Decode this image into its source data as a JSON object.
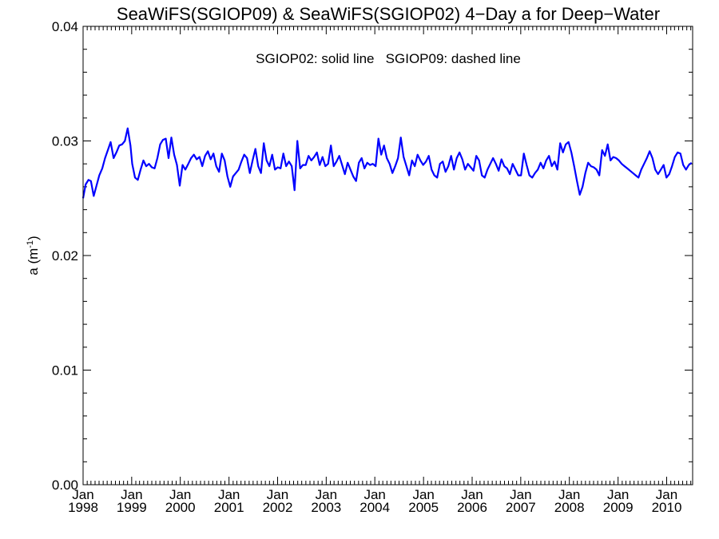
{
  "chart_data": {
    "type": "line",
    "title": "SeaWiFS(SGIOP09) & SeaWiFS(SGIOP02) 4−Day a for Deep−Water",
    "annotation": "SGIOP02: solid line   SGIOP09: dashed line",
    "ylabel": "a (m",
    "ylabel_sup": "-1",
    "ylabel_close": ")",
    "ylim": [
      0.0,
      0.04
    ],
    "yticks": [
      0.0,
      0.01,
      0.02,
      0.03,
      0.04
    ],
    "ytick_labels": [
      "0.00",
      "0.01",
      "0.02",
      "0.03",
      "0.04"
    ],
    "xlim": [
      "1998-01-01",
      "2010-07-15"
    ],
    "xticks": [
      {
        "month": "Jan",
        "year": "1998",
        "date": "1998-01-01"
      },
      {
        "month": "Jan",
        "year": "1999",
        "date": "1999-01-01"
      },
      {
        "month": "Jan",
        "year": "2000",
        "date": "2000-01-01"
      },
      {
        "month": "Jan",
        "year": "2001",
        "date": "2001-01-01"
      },
      {
        "month": "Jan",
        "year": "2002",
        "date": "2002-01-01"
      },
      {
        "month": "Jan",
        "year": "2003",
        "date": "2003-01-01"
      },
      {
        "month": "Jan",
        "year": "2004",
        "date": "2004-01-01"
      },
      {
        "month": "Jan",
        "year": "2005",
        "date": "2005-01-01"
      },
      {
        "month": "Jan",
        "year": "2006",
        "date": "2006-01-01"
      },
      {
        "month": "Jan",
        "year": "2007",
        "date": "2007-01-01"
      },
      {
        "month": "Jan",
        "year": "2008",
        "date": "2008-01-01"
      },
      {
        "month": "Jan",
        "year": "2009",
        "date": "2009-01-01"
      },
      {
        "month": "Jan",
        "year": "2010",
        "date": "2010-01-01"
      }
    ],
    "grid": false,
    "legend": "none",
    "series": [
      {
        "color": "#0000ff",
        "style": "solid",
        "x": [
          "1998-01-01",
          "1998-01-20",
          "1998-02-10",
          "1998-03-01",
          "1998-03-22",
          "1998-04-12",
          "1998-05-03",
          "1998-05-25",
          "1998-06-15",
          "1998-07-06",
          "1998-07-27",
          "1998-08-18",
          "1998-09-08",
          "1998-09-30",
          "1998-10-21",
          "1998-11-11",
          "1998-12-02",
          "1998-12-23",
          "1999-01-05",
          "1999-01-26",
          "1999-02-16",
          "1999-03-09",
          "1999-03-30",
          "1999-04-20",
          "1999-05-11",
          "1999-06-01",
          "1999-06-22",
          "1999-07-13",
          "1999-08-03",
          "1999-08-24",
          "1999-09-14",
          "1999-10-05",
          "1999-10-26",
          "1999-11-16",
          "1999-12-07",
          "1999-12-28",
          "2000-01-18",
          "2000-02-08",
          "2000-03-01",
          "2000-03-22",
          "2000-04-12",
          "2000-05-03",
          "2000-05-24",
          "2000-06-14",
          "2000-07-05",
          "2000-07-26",
          "2000-08-16",
          "2000-09-06",
          "2000-09-27",
          "2000-10-18",
          "2000-11-08",
          "2000-11-29",
          "2000-12-20",
          "2001-01-10",
          "2001-01-31",
          "2001-02-21",
          "2001-03-14",
          "2001-04-04",
          "2001-04-25",
          "2001-05-16",
          "2001-06-06",
          "2001-06-27",
          "2001-07-18",
          "2001-08-08",
          "2001-08-29",
          "2001-09-19",
          "2001-10-10",
          "2001-10-31",
          "2001-11-21",
          "2001-12-12",
          "2002-01-02",
          "2002-01-23",
          "2002-02-13",
          "2002-03-06",
          "2002-03-27",
          "2002-04-17",
          "2002-05-08",
          "2002-05-29",
          "2002-06-19",
          "2002-07-10",
          "2002-07-31",
          "2002-08-21",
          "2002-09-11",
          "2002-10-02",
          "2002-10-23",
          "2002-11-13",
          "2002-12-04",
          "2002-12-25",
          "2003-01-15",
          "2003-02-05",
          "2003-02-26",
          "2003-03-19",
          "2003-04-09",
          "2003-04-30",
          "2003-05-21",
          "2003-06-11",
          "2003-07-02",
          "2003-07-23",
          "2003-08-13",
          "2003-09-03",
          "2003-09-24",
          "2003-10-15",
          "2003-11-05",
          "2003-11-26",
          "2003-12-17",
          "2004-01-07",
          "2004-01-28",
          "2004-02-18",
          "2004-03-10",
          "2004-03-31",
          "2004-04-21",
          "2004-05-12",
          "2004-06-02",
          "2004-06-23",
          "2004-07-14",
          "2004-08-04",
          "2004-08-25",
          "2004-09-15",
          "2004-10-06",
          "2004-10-27",
          "2004-11-17",
          "2004-12-08",
          "2004-12-29",
          "2005-01-19",
          "2005-02-09",
          "2005-03-02",
          "2005-03-23",
          "2005-04-13",
          "2005-05-04",
          "2005-05-25",
          "2005-06-15",
          "2005-07-06",
          "2005-07-27",
          "2005-08-17",
          "2005-09-07",
          "2005-09-28",
          "2005-10-19",
          "2005-11-09",
          "2005-11-30",
          "2005-12-21",
          "2006-01-11",
          "2006-02-01",
          "2006-02-22",
          "2006-03-15",
          "2006-04-05",
          "2006-04-26",
          "2006-05-17",
          "2006-06-07",
          "2006-06-28",
          "2006-07-19",
          "2006-08-09",
          "2006-08-30",
          "2006-09-20",
          "2006-10-11",
          "2006-11-01",
          "2006-11-22",
          "2006-12-13",
          "2007-01-03",
          "2007-01-24",
          "2007-02-14",
          "2007-03-07",
          "2007-03-28",
          "2007-04-18",
          "2007-05-09",
          "2007-05-30",
          "2007-06-20",
          "2007-07-11",
          "2007-08-01",
          "2007-08-22",
          "2007-09-12",
          "2007-10-03",
          "2007-10-24",
          "2007-11-14",
          "2007-12-05",
          "2007-12-26",
          "2008-01-16",
          "2008-02-06",
          "2008-02-27",
          "2008-03-19",
          "2008-04-09",
          "2008-04-30",
          "2008-05-21",
          "2008-06-11",
          "2008-07-02",
          "2008-07-23",
          "2008-08-13",
          "2008-09-03",
          "2008-09-24",
          "2008-10-15",
          "2008-11-05",
          "2008-11-26",
          "2008-12-17",
          "2009-01-07",
          "2009-01-28",
          "2009-02-18",
          "2009-03-11",
          "2009-04-01",
          "2009-04-22",
          "2009-05-13",
          "2009-06-03",
          "2009-06-24",
          "2009-07-15",
          "2009-08-05",
          "2009-08-26",
          "2009-09-16",
          "2009-10-07",
          "2009-10-28",
          "2009-11-18",
          "2009-12-09",
          "2009-12-30",
          "2010-01-20",
          "2010-02-10",
          "2010-03-03",
          "2010-03-24",
          "2010-04-14",
          "2010-05-05",
          "2010-05-26",
          "2010-06-16",
          "2010-07-07"
        ],
        "y": [
          0.025,
          0.0262,
          0.0266,
          0.0265,
          0.0252,
          0.0261,
          0.027,
          0.0276,
          0.0285,
          0.0292,
          0.0299,
          0.0285,
          0.029,
          0.0296,
          0.0297,
          0.03,
          0.0311,
          0.0296,
          0.028,
          0.0268,
          0.0266,
          0.0275,
          0.0283,
          0.0278,
          0.028,
          0.0277,
          0.0276,
          0.0285,
          0.0297,
          0.0301,
          0.0302,
          0.0285,
          0.0303,
          0.0288,
          0.0279,
          0.0261,
          0.0279,
          0.0275,
          0.028,
          0.0285,
          0.0288,
          0.0284,
          0.0286,
          0.0278,
          0.0287,
          0.0291,
          0.0284,
          0.0289,
          0.0278,
          0.0273,
          0.0289,
          0.0283,
          0.0269,
          0.026,
          0.0269,
          0.0272,
          0.0275,
          0.0282,
          0.0288,
          0.0285,
          0.0272,
          0.0283,
          0.0293,
          0.0278,
          0.0272,
          0.0298,
          0.0283,
          0.0278,
          0.0288,
          0.0275,
          0.0277,
          0.0276,
          0.0289,
          0.0278,
          0.0282,
          0.0278,
          0.0257,
          0.03,
          0.0276,
          0.0279,
          0.0279,
          0.0287,
          0.0283,
          0.0286,
          0.029,
          0.0279,
          0.0286,
          0.0278,
          0.028,
          0.0296,
          0.0278,
          0.0282,
          0.0287,
          0.0279,
          0.0271,
          0.0281,
          0.0275,
          0.0269,
          0.0265,
          0.0281,
          0.0285,
          0.0276,
          0.0281,
          0.0279,
          0.028,
          0.0278,
          0.0302,
          0.0288,
          0.0296,
          0.0285,
          0.028,
          0.0272,
          0.0278,
          0.0285,
          0.0303,
          0.0286,
          0.0278,
          0.027,
          0.0283,
          0.0278,
          0.0288,
          0.0283,
          0.0279,
          0.0282,
          0.0287,
          0.0275,
          0.027,
          0.0268,
          0.028,
          0.0282,
          0.0273,
          0.0278,
          0.0287,
          0.0275,
          0.0285,
          0.029,
          0.0284,
          0.0275,
          0.028,
          0.0277,
          0.0274,
          0.0287,
          0.0283,
          0.027,
          0.0268,
          0.0275,
          0.028,
          0.0285,
          0.028,
          0.0274,
          0.0284,
          0.0278,
          0.0276,
          0.0271,
          0.028,
          0.0275,
          0.027,
          0.027,
          0.0289,
          0.0279,
          0.027,
          0.0268,
          0.0272,
          0.0275,
          0.0281,
          0.0276,
          0.0283,
          0.0287,
          0.0278,
          0.0282,
          0.0275,
          0.0298,
          0.029,
          0.0297,
          0.0299,
          0.029,
          0.0278,
          0.0265,
          0.0253,
          0.026,
          0.0272,
          0.0281,
          0.0278,
          0.0277,
          0.0275,
          0.027,
          0.0292,
          0.0287,
          0.0297,
          0.0283,
          0.0286,
          0.0285,
          0.0283,
          0.028,
          0.0278,
          0.0276,
          0.0274,
          0.0272,
          0.027,
          0.0268,
          0.0275,
          0.028,
          0.0285,
          0.0291,
          0.0285,
          0.0275,
          0.0271,
          0.0275,
          0.0279,
          0.0268,
          0.0271,
          0.0278,
          0.0286,
          0.029,
          0.0289,
          0.0279,
          0.0275,
          0.0279,
          0.0281
        ]
      }
    ]
  }
}
